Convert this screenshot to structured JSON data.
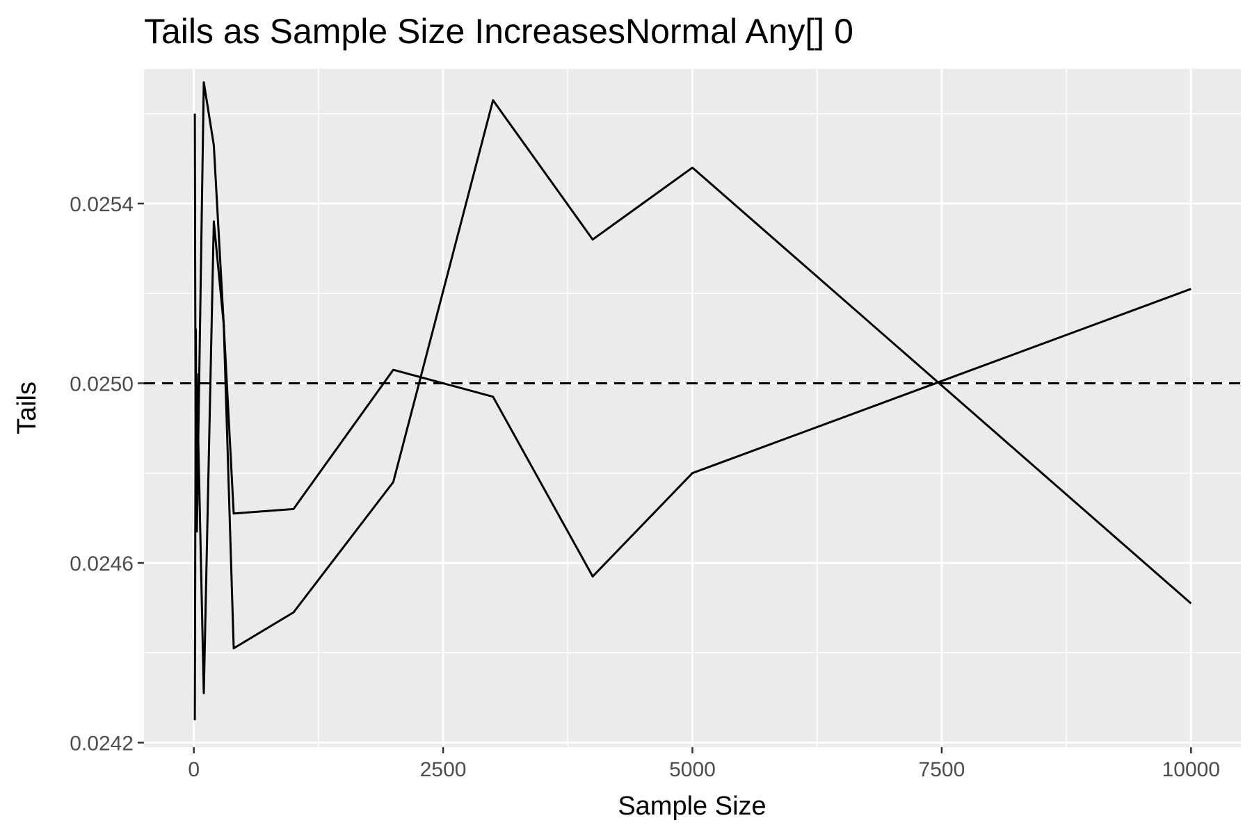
{
  "chart_data": {
    "type": "line",
    "title": "Tails as Sample Size IncreasesNormal Any[] 0",
    "xlabel": "Sample Size",
    "ylabel": "Tails",
    "xlim": [
      -500,
      10500
    ],
    "ylim": [
      0.02419,
      0.0257
    ],
    "x_ticks": [
      0,
      2500,
      5000,
      7500,
      10000
    ],
    "x_tick_labels": [
      "0",
      "2500",
      "5000",
      "7500",
      "10000"
    ],
    "y_ticks": [
      0.0242,
      0.0246,
      0.025,
      0.0254
    ],
    "y_tick_labels": [
      "0.0242",
      "0.0246",
      "0.0250",
      "0.0254"
    ],
    "y_minor_ticks": [
      0.0244,
      0.0248,
      0.0252,
      0.0256
    ],
    "x_minor_ticks": [
      1250,
      3750,
      6250,
      8750
    ],
    "grid": true,
    "panel_background": "#ebebeb",
    "grid_color": "#ffffff",
    "line_color": "#000000",
    "reference_line": {
      "y": 0.025,
      "style": "dashed"
    },
    "series": [
      {
        "x": [
          10,
          20,
          30,
          100,
          200,
          300,
          400,
          1000,
          2000,
          3000,
          4000,
          5000,
          10000
        ],
        "y": [
          0.02425,
          0.02512,
          0.02467,
          0.02567,
          0.02553,
          0.02513,
          0.02471,
          0.02472,
          0.02503,
          0.02497,
          0.02457,
          0.0248,
          0.02521
        ]
      },
      {
        "x": [
          10,
          20,
          30,
          100,
          200,
          300,
          400,
          1000,
          2000,
          3000,
          4000,
          5000,
          10000
        ],
        "y": [
          0.0256,
          0.02467,
          0.02502,
          0.02431,
          0.02536,
          0.02513,
          0.02441,
          0.02449,
          0.02478,
          0.02563,
          0.02532,
          0.02548,
          0.02451
        ]
      }
    ]
  }
}
